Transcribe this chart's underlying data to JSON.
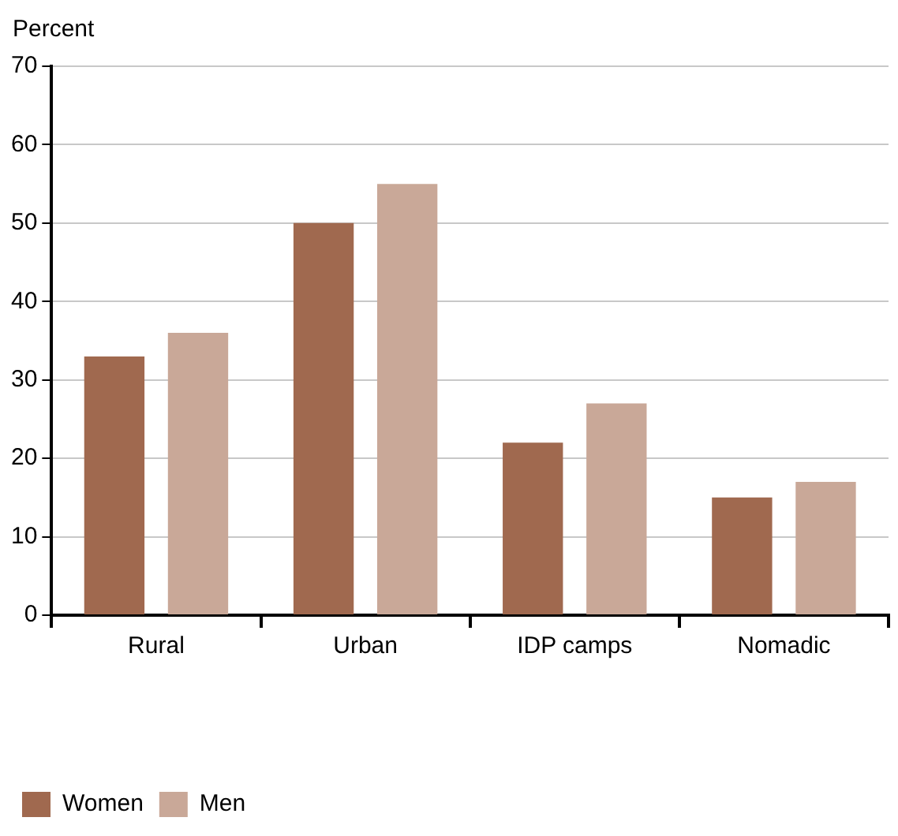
{
  "chart_data": {
    "type": "bar",
    "ylabel": "Percent",
    "categories": [
      "Rural",
      "Urban",
      "IDP camps",
      "Nomadic"
    ],
    "series": [
      {
        "name": "Women",
        "color": "#a0694f",
        "values": [
          33,
          50,
          22,
          15
        ]
      },
      {
        "name": "Men",
        "color": "#c9a898",
        "values": [
          36,
          55,
          27,
          17
        ]
      }
    ],
    "ylim": [
      0,
      70
    ],
    "yticks": [
      0,
      10,
      20,
      30,
      40,
      50,
      60,
      70
    ],
    "grid": "y",
    "legend": "bottom left"
  }
}
